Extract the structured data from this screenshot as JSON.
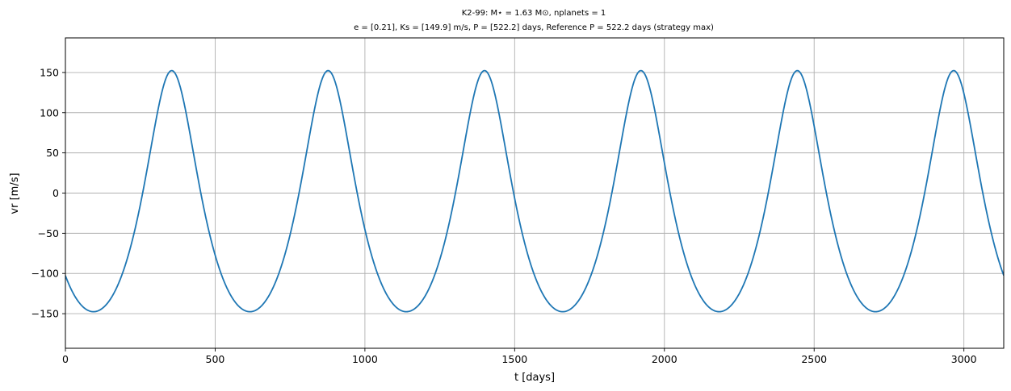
{
  "chart_data": {
    "type": "line",
    "title_lines": [
      "K2-99: M⋆ = 1.63 M⊙, nplanets = 1",
      "e = [0.21], Ks = [149.9] m/s, P = [522.2] days, Reference P = 522.2 days (strategy max)"
    ],
    "xlabel": "t [days]",
    "ylabel": "vr [m/s]",
    "xlim": [
      0,
      3133
    ],
    "ylim": [
      -193,
      193
    ],
    "xticks": [
      0,
      500,
      1000,
      1500,
      2000,
      2500,
      3000
    ],
    "yticks": [
      -150,
      -100,
      -50,
      0,
      50,
      100,
      150
    ],
    "grid": true,
    "series": [
      {
        "color": "#1f77b4",
        "model": {
          "kind": "keplerian",
          "period_days": 522.2,
          "eccentricity": 0.21,
          "K": 149.9,
          "omega_deg": 0,
          "gamma": -29.1,
          "tp_days": 355
        }
      }
    ]
  }
}
